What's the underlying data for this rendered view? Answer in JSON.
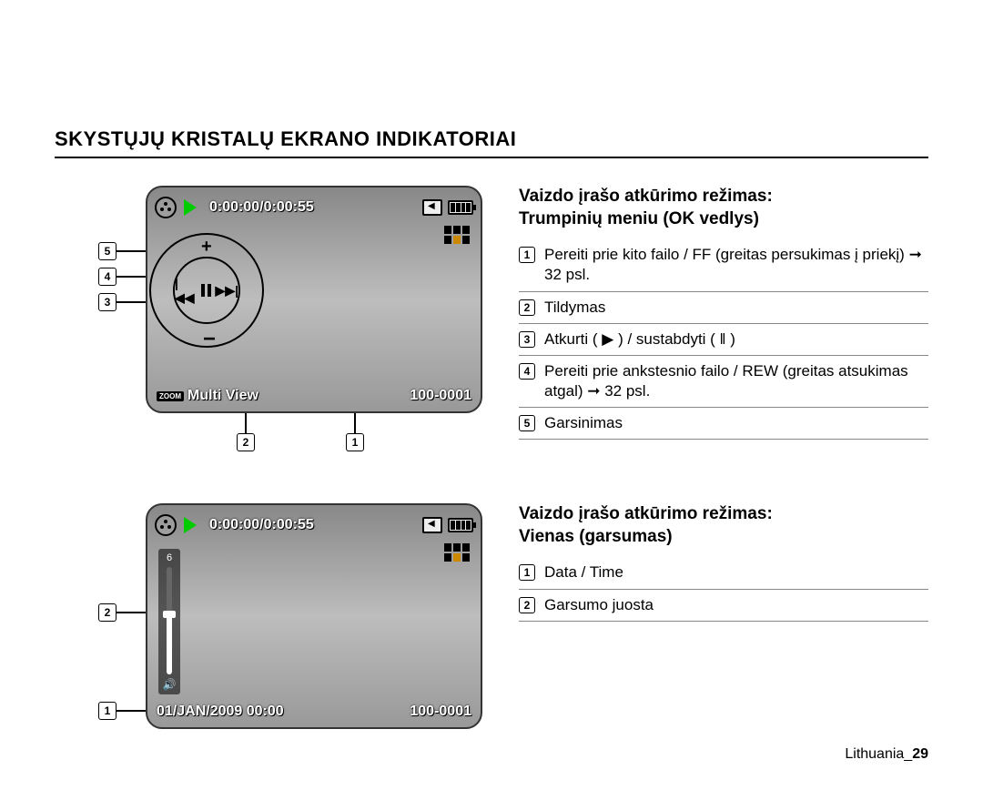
{
  "page_title": "SKYSTŲJŲ KRISTALŲ EKRANO INDIKATORIAI",
  "footer_loc": "Lithuania_",
  "footer_page": "29",
  "screen1": {
    "timecode": "0:00:00/0:00:55",
    "zoom_label": "ZOOM",
    "multi_view": "Multi View",
    "file_no": "100-0001",
    "callouts_left": [
      "5",
      "4",
      "3"
    ],
    "callouts_bottom": [
      "2",
      "1"
    ]
  },
  "desc1": {
    "head_l1": "Vaizdo įrašo atkūrimo režimas:",
    "head_l2": "Trumpinių meniu (OK vedlys)",
    "items": [
      {
        "n": "1",
        "t": "Pereiti prie kito failo / FF (greitas persukimas į priekį) ➞ 32 psl."
      },
      {
        "n": "2",
        "t": "Tildymas"
      },
      {
        "n": "3",
        "t": "Atkurti ( ▶ ) / sustabdyti ( ‖ )"
      },
      {
        "n": "4",
        "t": "Pereiti prie ankstesnio failo / REW (greitas atsukimas atgal) ➞ 32 psl."
      },
      {
        "n": "5",
        "t": "Garsinimas"
      }
    ]
  },
  "screen2": {
    "timecode": "0:00:00/0:00:55",
    "datetime": "01/JAN/2009 00:00",
    "file_no": "100-0001",
    "vol_num": "6",
    "callouts_left": [
      "2",
      "1"
    ]
  },
  "desc2": {
    "head_l1": "Vaizdo įrašo atkūrimo režimas:",
    "head_l2": "Vienas (garsumas)",
    "items": [
      {
        "n": "1",
        "t": "Data / Time"
      },
      {
        "n": "2",
        "t": "Garsumo juosta"
      }
    ]
  }
}
